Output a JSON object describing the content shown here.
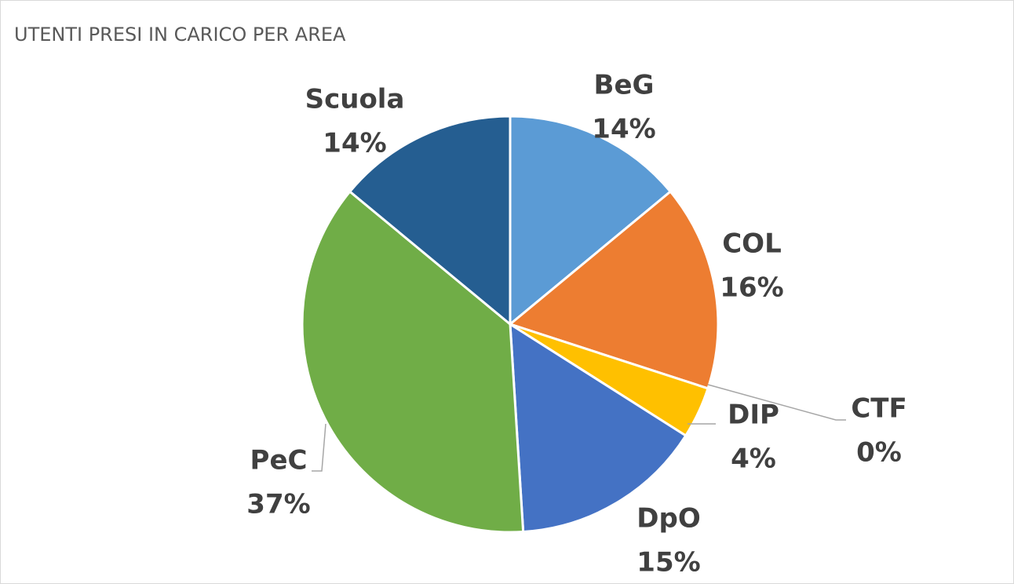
{
  "chart_data": {
    "type": "pie",
    "title": "UTENTI PRESI IN CARICO PER AREA",
    "categories": [
      "BeG",
      "COL",
      "CTF",
      "DIP",
      "DpO",
      "PeC",
      "Scuola"
    ],
    "values": [
      14,
      16,
      0,
      4,
      15,
      37,
      14
    ],
    "value_labels": [
      "14%",
      "16%",
      "0%",
      "4%",
      "15%",
      "37%",
      "14%"
    ],
    "colors": [
      "#5b9bd5",
      "#ed7d31",
      "#a5a5a5",
      "#ffc000",
      "#4472c4",
      "#70ad47",
      "#255e91"
    ]
  }
}
